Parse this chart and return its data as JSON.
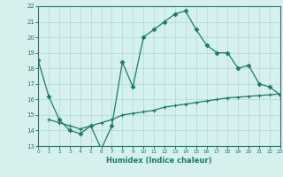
{
  "upper_x": [
    0,
    1,
    2,
    3,
    4,
    5,
    6,
    7,
    8,
    9,
    10,
    11,
    12,
    13,
    14,
    15,
    16,
    17,
    18,
    19,
    20,
    21,
    22,
    23
  ],
  "upper_y": [
    18.5,
    16.2,
    14.7,
    14.0,
    13.8,
    14.3,
    12.8,
    14.3,
    18.4,
    16.8,
    20.0,
    20.5,
    21.0,
    21.5,
    21.7,
    20.5,
    19.5,
    19.0,
    19.0,
    18.0,
    18.2,
    17.0,
    16.8,
    16.3
  ],
  "lower_x": [
    1,
    2,
    3,
    4,
    5,
    6,
    7,
    8,
    9,
    10,
    11,
    12,
    13,
    14,
    15,
    16,
    17,
    18,
    19,
    20,
    21,
    22,
    23
  ],
  "lower_y": [
    14.7,
    14.5,
    14.3,
    14.1,
    14.3,
    14.5,
    14.7,
    15.0,
    15.1,
    15.2,
    15.3,
    15.5,
    15.6,
    15.7,
    15.8,
    15.9,
    16.0,
    16.1,
    16.15,
    16.2,
    16.25,
    16.3,
    16.35
  ],
  "line_color": "#1a7a6e",
  "bg_color": "#d6f0ee",
  "grid_color": "#b0d8d4",
  "xlabel": "Humidex (Indice chaleur)",
  "ylim": [
    13,
    22
  ],
  "xlim": [
    0,
    23
  ],
  "yticks": [
    13,
    14,
    15,
    16,
    17,
    18,
    19,
    20,
    21,
    22
  ],
  "xticks": [
    0,
    1,
    2,
    3,
    4,
    5,
    6,
    7,
    8,
    9,
    10,
    11,
    12,
    13,
    14,
    15,
    16,
    17,
    18,
    19,
    20,
    21,
    22,
    23
  ]
}
